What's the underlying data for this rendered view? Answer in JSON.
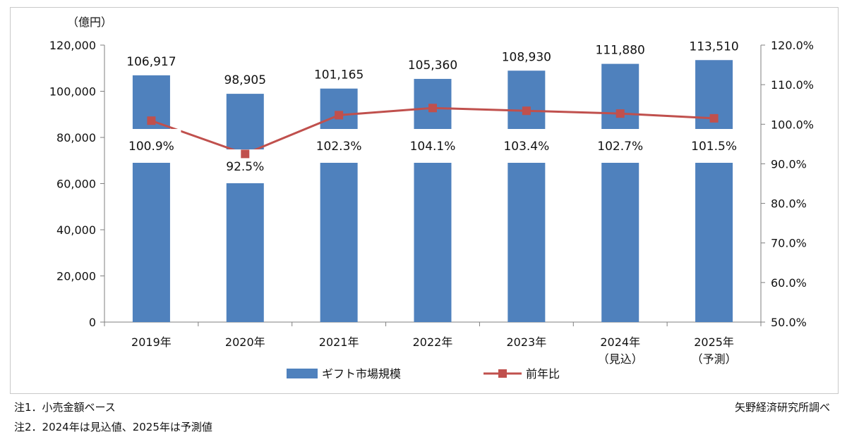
{
  "notes": {
    "note1": "注1．小売金額ベース",
    "note2": "注2．2024年は見込値、2025年は予測値",
    "source": "矢野経済研究所調べ"
  },
  "colors": {
    "bar": "#4f81bd",
    "line": "#c0504d",
    "axis": "#7f7f7f"
  },
  "chart_data": {
    "type": "bar",
    "title": "",
    "categories": [
      "2019年",
      "2020年",
      "2021年",
      "2022年",
      "2023年",
      "2024年",
      "2025年"
    ],
    "category_sublabels": [
      "",
      "",
      "",
      "",
      "",
      "（見込）",
      "（予測）"
    ],
    "y_left_unit": "（億円）",
    "y_left_lim": [
      0,
      120000
    ],
    "y_left_ticks": [
      "0",
      "20,000",
      "40,000",
      "60,000",
      "80,000",
      "100,000",
      "120,000"
    ],
    "y_right_lim": [
      50,
      120
    ],
    "y_right_ticks": [
      "50.0%",
      "60.0%",
      "70.0%",
      "80.0%",
      "90.0%",
      "100.0%",
      "110.0%",
      "120.0%"
    ],
    "series": [
      {
        "name": "ギフト市場規模",
        "type": "bar",
        "axis": "left",
        "values": [
          106917,
          98905,
          101165,
          105360,
          108930,
          111880,
          113510
        ],
        "labels": [
          "106,917",
          "98,905",
          "101,165",
          "105,360",
          "108,930",
          "111,880",
          "113,510"
        ]
      },
      {
        "name": "前年比",
        "type": "line",
        "axis": "right",
        "values": [
          100.9,
          92.5,
          102.3,
          104.1,
          103.4,
          102.7,
          101.5
        ],
        "labels": [
          "100.9%",
          "92.5%",
          "102.3%",
          "104.1%",
          "103.4%",
          "102.7%",
          "101.5%"
        ]
      }
    ],
    "grid": false,
    "legend": "bottom-center"
  }
}
